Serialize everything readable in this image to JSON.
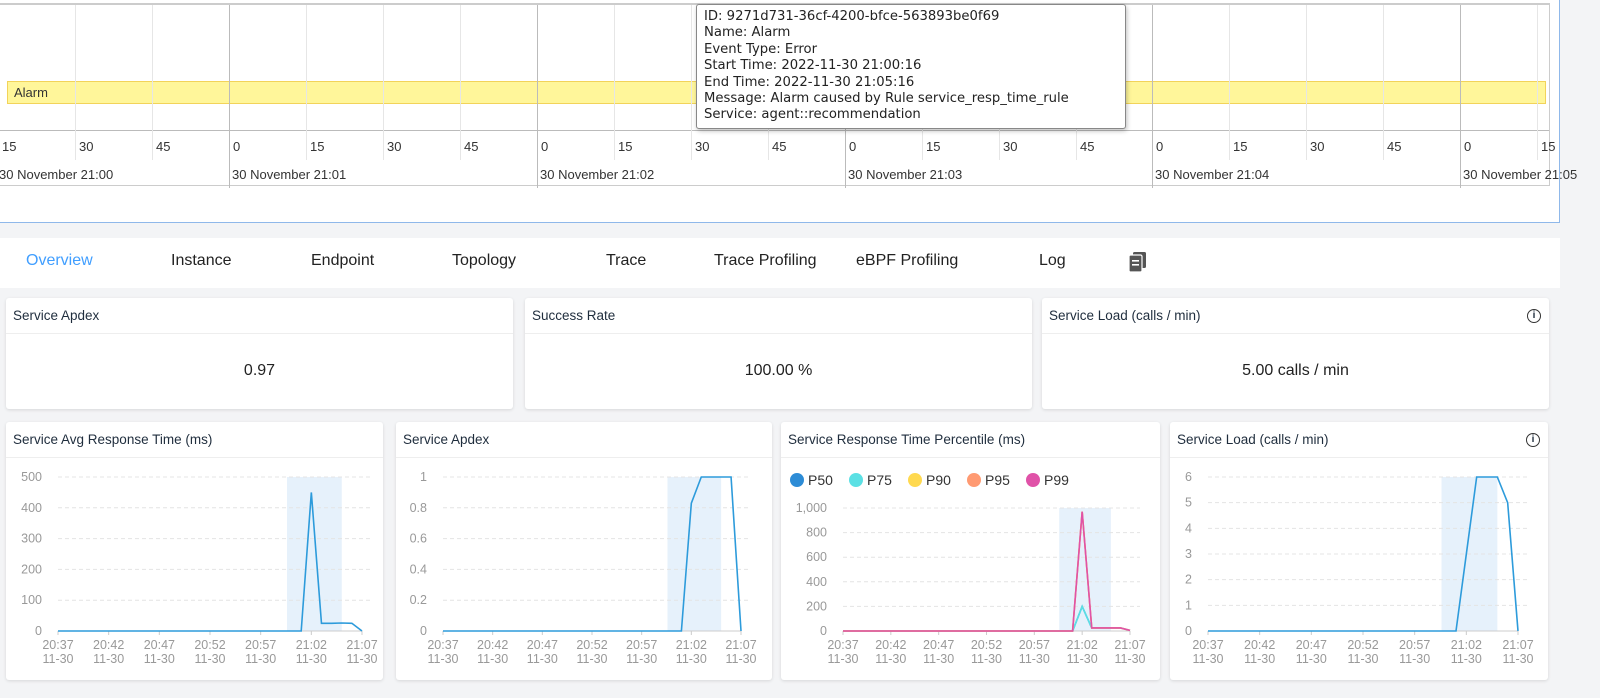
{
  "timeline": {
    "seconds_labels": [
      "15",
      "30",
      "45",
      "0",
      "15",
      "30",
      "45",
      "0",
      "15",
      "30",
      "45",
      "0",
      "15",
      "30",
      "45",
      "0",
      "15",
      "30",
      "45",
      "0",
      "15"
    ],
    "minute_labels": [
      "30 November 21:00",
      "30 November 21:01",
      "30 November 21:02",
      "30 November 21:03",
      "30 November 21:04",
      "30 November 21:05"
    ],
    "event_label": "Alarm",
    "event_color": "#fff69a"
  },
  "tooltip": {
    "lines": [
      "ID: 9271d731-36cf-4200-bfce-563893be0f69",
      "Name: Alarm",
      "Event Type: Error",
      "Start Time: 2022-11-30 21:00:16",
      "End Time: 2022-11-30 21:05:16",
      "Message: Alarm caused by Rule service_resp_time_rule",
      "Service: agent::recommendation"
    ]
  },
  "tabs": [
    {
      "label": "Overview",
      "active": true
    },
    {
      "label": "Instance"
    },
    {
      "label": "Endpoint"
    },
    {
      "label": "Topology"
    },
    {
      "label": "Trace"
    },
    {
      "label": "Trace Profiling"
    },
    {
      "label": "eBPF Profiling"
    },
    {
      "label": "Log"
    }
  ],
  "tabs_extra_icon": "copy-icon",
  "cards": [
    {
      "title": "Service Apdex",
      "value": "0.97"
    },
    {
      "title": "Success Rate",
      "value": "100.00 %"
    },
    {
      "title": "Service Load (calls / min)",
      "value": "5.00 calls / min",
      "info_icon": "info-icon"
    }
  ],
  "accent_color": "#409eff",
  "chart_data": [
    {
      "type": "line",
      "title": "Service Avg Response Time (ms)",
      "x_ticks": [
        "20:37\n11-30",
        "20:42\n11-30",
        "20:47\n11-30",
        "20:52\n11-30",
        "20:57\n11-30",
        "21:02\n11-30",
        "21:07\n11-30"
      ],
      "x_range": [
        "20:37",
        "21:07"
      ],
      "ylim": [
        0,
        500
      ],
      "y_ticks": [
        "0",
        "100",
        "200",
        "300",
        "400",
        "500"
      ],
      "highlight": [
        "21:00",
        "21:05"
      ],
      "grid": true,
      "series": [
        {
          "color": "#2d9bdb",
          "values": [
            0,
            0,
            0,
            0,
            0,
            0,
            0,
            0,
            0,
            0,
            0,
            0,
            0,
            0,
            0,
            0,
            0,
            0,
            0,
            0,
            0,
            0,
            0,
            0,
            0,
            450,
            25,
            25,
            26,
            25,
            0
          ]
        }
      ]
    },
    {
      "type": "line",
      "title": "Service Apdex",
      "x_ticks": [
        "20:37\n11-30",
        "20:42\n11-30",
        "20:47\n11-30",
        "20:52\n11-30",
        "20:57\n11-30",
        "21:02\n11-30",
        "21:07\n11-30"
      ],
      "x_range": [
        "20:37",
        "21:07"
      ],
      "ylim": [
        0,
        1
      ],
      "y_ticks": [
        "0",
        "0.2",
        "0.4",
        "0.6",
        "0.8",
        "1"
      ],
      "highlight": [
        "21:00",
        "21:05"
      ],
      "grid": true,
      "series": [
        {
          "color": "#2d9bdb",
          "values": [
            0,
            0,
            0,
            0,
            0,
            0,
            0,
            0,
            0,
            0,
            0,
            0,
            0,
            0,
            0,
            0,
            0,
            0,
            0,
            0,
            0,
            0,
            0,
            0,
            0,
            0.83,
            1,
            1,
            1,
            1,
            0
          ]
        }
      ]
    },
    {
      "type": "line",
      "title": "Service Response Time Percentile (ms)",
      "legend": "top-left",
      "x_ticks": [
        "20:37\n11-30",
        "20:42\n11-30",
        "20:47\n11-30",
        "20:52\n11-30",
        "20:57\n11-30",
        "21:02\n11-30",
        "21:07\n11-30"
      ],
      "x_range": [
        "20:37",
        "21:07"
      ],
      "ylim": [
        0,
        1000
      ],
      "y_ticks": [
        "0",
        "200",
        "400",
        "600",
        "800",
        "1,000"
      ],
      "highlight": [
        "21:00",
        "21:05"
      ],
      "grid": true,
      "series": [
        {
          "name": "P50",
          "color": "#2d8cd6",
          "values": [
            0,
            0,
            0,
            0,
            0,
            0,
            0,
            0,
            0,
            0,
            0,
            0,
            0,
            0,
            0,
            0,
            0,
            0,
            0,
            0,
            0,
            0,
            0,
            0,
            0,
            200,
            25,
            25,
            25,
            25,
            5
          ]
        },
        {
          "name": "P75",
          "color": "#5be0e4",
          "values": [
            0,
            0,
            0,
            0,
            0,
            0,
            0,
            0,
            0,
            0,
            0,
            0,
            0,
            0,
            0,
            0,
            0,
            0,
            0,
            0,
            0,
            0,
            0,
            0,
            0,
            200,
            25,
            25,
            25,
            25,
            5
          ]
        },
        {
          "name": "P90",
          "color": "#ffd94f",
          "values": [
            0,
            0,
            0,
            0,
            0,
            0,
            0,
            0,
            0,
            0,
            0,
            0,
            0,
            0,
            0,
            0,
            0,
            0,
            0,
            0,
            0,
            0,
            0,
            0,
            0,
            970,
            25,
            25,
            25,
            25,
            5
          ]
        },
        {
          "name": "P95",
          "color": "#ff9a72",
          "values": [
            0,
            0,
            0,
            0,
            0,
            0,
            0,
            0,
            0,
            0,
            0,
            0,
            0,
            0,
            0,
            0,
            0,
            0,
            0,
            0,
            0,
            0,
            0,
            0,
            0,
            970,
            25,
            25,
            25,
            25,
            5
          ]
        },
        {
          "name": "P99",
          "color": "#e052a8",
          "values": [
            0,
            0,
            0,
            0,
            0,
            0,
            0,
            0,
            0,
            0,
            0,
            0,
            0,
            0,
            0,
            0,
            0,
            0,
            0,
            0,
            0,
            0,
            0,
            0,
            0,
            970,
            25,
            25,
            25,
            25,
            5
          ]
        }
      ]
    },
    {
      "type": "line",
      "title": "Service Load (calls / min)",
      "info_icon": "info-icon",
      "x_ticks": [
        "20:37\n11-30",
        "20:42\n11-30",
        "20:47\n11-30",
        "20:52\n11-30",
        "20:57\n11-30",
        "21:02\n11-30",
        "21:07\n11-30"
      ],
      "x_range": [
        "20:37",
        "21:07"
      ],
      "ylim": [
        0,
        6
      ],
      "y_ticks": [
        "0",
        "1",
        "2",
        "3",
        "4",
        "5",
        "6"
      ],
      "highlight": [
        "21:00",
        "21:05"
      ],
      "grid": true,
      "series": [
        {
          "color": "#2d9bdb",
          "values": [
            0,
            0,
            0,
            0,
            0,
            0,
            0,
            0,
            0,
            0,
            0,
            0,
            0,
            0,
            0,
            0,
            0,
            0,
            0,
            0,
            0,
            0,
            0,
            0,
            0,
            3,
            6,
            6,
            6,
            5,
            0
          ]
        }
      ]
    }
  ]
}
